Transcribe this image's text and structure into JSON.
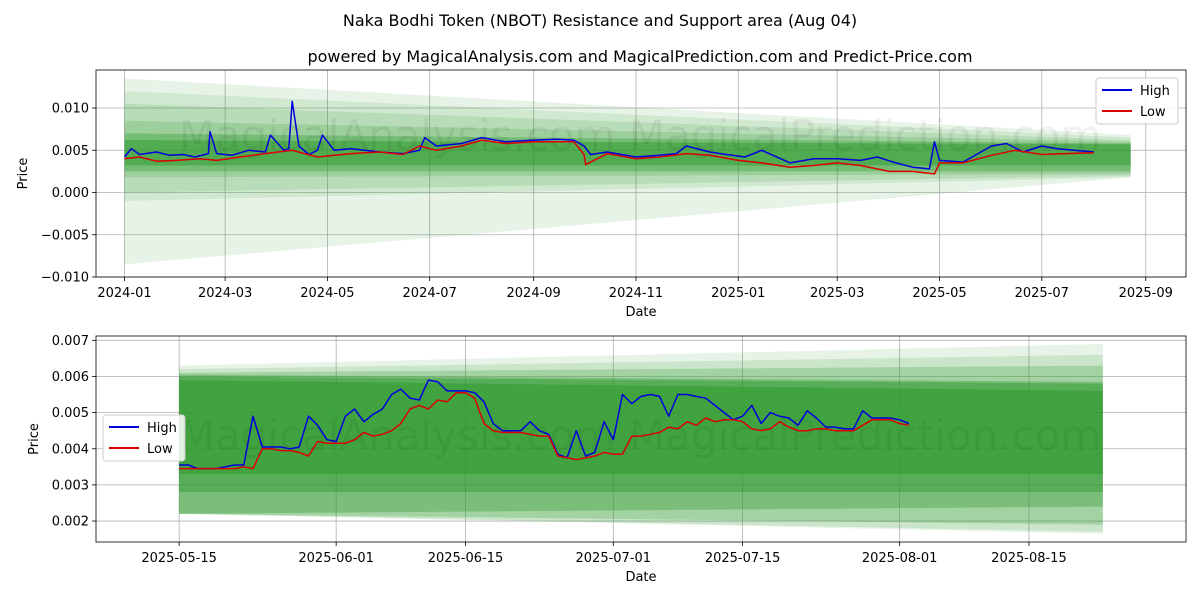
{
  "title": "Naka Bodhi Token (NBOT) Resistance and Support area (Aug 04)",
  "subtitle": "powered by MagicalAnalysis.com and MagicalPrediction.com and Predict-Price.com",
  "watermark": "MagicalAnalysis.com    MagicalPrediction.com",
  "colors": {
    "high": "#0000dd",
    "low": "#dd0000",
    "band": "#2e9a2e",
    "grid": "#b0b0b0"
  },
  "chart_data": [
    {
      "type": "line",
      "xlabel": "Date",
      "ylabel": "Price",
      "xlim": [
        "2023-12-15",
        "2025-09-25"
      ],
      "ylim": [
        -0.01,
        0.0145
      ],
      "xticks": [
        "2024-01",
        "2024-03",
        "2024-05",
        "2024-07",
        "2024-09",
        "2024-11",
        "2025-01",
        "2025-03",
        "2025-05",
        "2025-07",
        "2025-09"
      ],
      "yticks": [
        -0.01,
        -0.005,
        0.0,
        0.005,
        0.01
      ],
      "ytick_labels": [
        "−0.010",
        "−0.005",
        "0.000",
        "0.005",
        "0.010"
      ],
      "legend": {
        "position": "top-right",
        "entries": [
          "High",
          "Low"
        ]
      },
      "grid": true,
      "bands": [
        {
          "x": [
            "2024-01-01",
            "2025-08-23"
          ],
          "upper": [
            0.0135,
            0.0068
          ],
          "lower": [
            -0.0085,
            0.0018
          ],
          "opacity": 0.12
        },
        {
          "x": [
            "2024-01-01",
            "2025-08-23"
          ],
          "upper": [
            0.012,
            0.0065
          ],
          "lower": [
            -0.001,
            0.0018
          ],
          "opacity": 0.12
        },
        {
          "x": [
            "2024-01-01",
            "2025-08-23"
          ],
          "upper": [
            0.0105,
            0.0062
          ],
          "lower": [
            0.0,
            0.002
          ],
          "opacity": 0.15
        },
        {
          "x": [
            "2024-01-01",
            "2025-08-23"
          ],
          "upper": [
            0.0085,
            0.006
          ],
          "lower": [
            0.0018,
            0.0022
          ],
          "opacity": 0.2
        },
        {
          "x": [
            "2024-01-01",
            "2025-08-23"
          ],
          "upper": [
            0.007,
            0.0058
          ],
          "lower": [
            0.0025,
            0.0025
          ],
          "opacity": 0.35
        },
        {
          "x": [
            "2024-01-01",
            "2025-08-23"
          ],
          "upper": [
            0.0062,
            0.0057
          ],
          "lower": [
            0.0032,
            0.0032
          ],
          "opacity": 0.5
        }
      ],
      "series": [
        {
          "name": "High",
          "color": "#0000dd",
          "x": [
            "2024-01-01",
            "2024-01-05",
            "2024-01-10",
            "2024-01-20",
            "2024-01-28",
            "2024-02-05",
            "2024-02-12",
            "2024-02-20",
            "2024-02-21",
            "2024-02-25",
            "2024-03-05",
            "2024-03-15",
            "2024-03-25",
            "2024-03-28",
            "2024-04-05",
            "2024-04-08",
            "2024-04-10",
            "2024-04-14",
            "2024-04-20",
            "2024-04-25",
            "2024-04-28",
            "2024-05-05",
            "2024-05-15",
            "2024-06-01",
            "2024-06-15",
            "2024-06-25",
            "2024-06-28",
            "2024-07-05",
            "2024-07-20",
            "2024-08-01",
            "2024-08-15",
            "2024-09-01",
            "2024-09-15",
            "2024-09-25",
            "2024-10-01",
            "2024-10-05",
            "2024-10-15",
            "2024-11-01",
            "2024-11-15",
            "2024-11-25",
            "2024-12-01",
            "2024-12-15",
            "2024-12-25",
            "2025-01-05",
            "2025-01-15",
            "2025-02-01",
            "2025-02-15",
            "2025-03-01",
            "2025-03-15",
            "2025-03-25",
            "2025-04-05",
            "2025-04-15",
            "2025-04-25",
            "2025-04-28",
            "2025-05-01",
            "2025-05-15",
            "2025-06-01",
            "2025-06-10",
            "2025-06-20",
            "2025-07-01",
            "2025-07-10",
            "2025-07-20",
            "2025-08-01"
          ],
          "y": [
            0.0042,
            0.0052,
            0.0045,
            0.0048,
            0.0044,
            0.0045,
            0.0042,
            0.0046,
            0.0072,
            0.0046,
            0.0044,
            0.005,
            0.0048,
            0.0068,
            0.005,
            0.0052,
            0.0108,
            0.0055,
            0.0045,
            0.005,
            0.0068,
            0.005,
            0.0052,
            0.0048,
            0.0046,
            0.005,
            0.0065,
            0.0055,
            0.0058,
            0.0065,
            0.006,
            0.0062,
            0.0063,
            0.0062,
            0.0055,
            0.0045,
            0.0048,
            0.0042,
            0.0044,
            0.0046,
            0.0055,
            0.0048,
            0.0045,
            0.0042,
            0.005,
            0.0035,
            0.004,
            0.004,
            0.0038,
            0.0042,
            0.0035,
            0.003,
            0.0028,
            0.006,
            0.0038,
            0.0036,
            0.0055,
            0.0058,
            0.0048,
            0.0055,
            0.0052,
            0.005,
            0.0048
          ]
        },
        {
          "name": "Low",
          "color": "#dd0000",
          "x": [
            "2024-01-01",
            "2024-01-10",
            "2024-01-20",
            "2024-02-01",
            "2024-02-15",
            "2024-02-25",
            "2024-03-10",
            "2024-03-25",
            "2024-04-10",
            "2024-04-25",
            "2024-05-15",
            "2024-06-01",
            "2024-06-15",
            "2024-06-25",
            "2024-07-05",
            "2024-07-20",
            "2024-08-01",
            "2024-08-15",
            "2024-09-01",
            "2024-09-25",
            "2024-10-01",
            "2024-10-02",
            "2024-10-15",
            "2024-11-01",
            "2024-11-15",
            "2024-12-01",
            "2024-12-15",
            "2025-01-01",
            "2025-01-15",
            "2025-02-01",
            "2025-02-15",
            "2025-03-01",
            "2025-03-15",
            "2025-04-01",
            "2025-04-15",
            "2025-04-28",
            "2025-05-01",
            "2025-05-15",
            "2025-06-01",
            "2025-06-15",
            "2025-07-01",
            "2025-07-15",
            "2025-08-01"
          ],
          "y": [
            0.004,
            0.0042,
            0.0037,
            0.0038,
            0.004,
            0.0038,
            0.0042,
            0.0046,
            0.005,
            0.0042,
            0.0046,
            0.0048,
            0.0045,
            0.0055,
            0.005,
            0.0055,
            0.0062,
            0.0058,
            0.006,
            0.006,
            0.0045,
            0.0033,
            0.0046,
            0.004,
            0.0042,
            0.0046,
            0.0044,
            0.0038,
            0.0035,
            0.003,
            0.0032,
            0.0035,
            0.0032,
            0.0025,
            0.0025,
            0.0022,
            0.0035,
            0.0035,
            0.0044,
            0.005,
            0.0045,
            0.0046,
            0.0047
          ]
        }
      ]
    },
    {
      "type": "line",
      "xlabel": "Date",
      "ylabel": "Price",
      "xlim": [
        "2025-05-06",
        "2025-09-01"
      ],
      "ylim": [
        0.00142,
        0.00712
      ],
      "xticks": [
        "2025-05-15",
        "2025-06-01",
        "2025-06-15",
        "2025-07-01",
        "2025-07-15",
        "2025-08-01",
        "2025-08-15"
      ],
      "yticks": [
        0.002,
        0.003,
        0.004,
        0.005,
        0.006,
        0.007
      ],
      "ytick_labels": [
        "0.002",
        "0.003",
        "0.004",
        "0.005",
        "0.006",
        "0.007"
      ],
      "legend": {
        "position": "center-left",
        "entries": [
          "High",
          "Low"
        ]
      },
      "grid": true,
      "bands": [
        {
          "x": [
            "2025-05-15",
            "2025-08-23"
          ],
          "upper": [
            0.0063,
            0.0069
          ],
          "lower": [
            0.0022,
            0.00165
          ],
          "opacity": 0.12
        },
        {
          "x": [
            "2025-05-15",
            "2025-08-23"
          ],
          "upper": [
            0.0062,
            0.0066
          ],
          "lower": [
            0.0022,
            0.0017
          ],
          "opacity": 0.15
        },
        {
          "x": [
            "2025-05-15",
            "2025-08-23"
          ],
          "upper": [
            0.0061,
            0.0063
          ],
          "lower": [
            0.0022,
            0.0019
          ],
          "opacity": 0.25
        },
        {
          "x": [
            "2025-05-15",
            "2025-08-23"
          ],
          "upper": [
            0.00605,
            0.00585
          ],
          "lower": [
            0.0022,
            0.0024
          ],
          "opacity": 0.35
        },
        {
          "x": [
            "2025-05-15",
            "2025-08-23"
          ],
          "upper": [
            0.006,
            0.0058
          ],
          "lower": [
            0.0028,
            0.0028
          ],
          "opacity": 0.45
        },
        {
          "x": [
            "2025-05-15",
            "2025-08-23"
          ],
          "upper": [
            0.0059,
            0.0056
          ],
          "lower": [
            0.0033,
            0.0033
          ],
          "opacity": 0.55
        }
      ],
      "series": [
        {
          "name": "High",
          "color": "#0000dd",
          "x": [
            "2025-05-15",
            "2025-05-16",
            "2025-05-17",
            "2025-05-18",
            "2025-05-19",
            "2025-05-20",
            "2025-05-21",
            "2025-05-22",
            "2025-05-23",
            "2025-05-24",
            "2025-05-25",
            "2025-05-26",
            "2025-05-27",
            "2025-05-28",
            "2025-05-29",
            "2025-05-30",
            "2025-05-31",
            "2025-06-01",
            "2025-06-02",
            "2025-06-03",
            "2025-06-04",
            "2025-06-05",
            "2025-06-06",
            "2025-06-07",
            "2025-06-08",
            "2025-06-09",
            "2025-06-10",
            "2025-06-11",
            "2025-06-12",
            "2025-06-13",
            "2025-06-14",
            "2025-06-15",
            "2025-06-16",
            "2025-06-17",
            "2025-06-18",
            "2025-06-19",
            "2025-06-20",
            "2025-06-21",
            "2025-06-22",
            "2025-06-23",
            "2025-06-24",
            "2025-06-25",
            "2025-06-26",
            "2025-06-27",
            "2025-06-28",
            "2025-06-29",
            "2025-06-30",
            "2025-07-01",
            "2025-07-02",
            "2025-07-03",
            "2025-07-04",
            "2025-07-05",
            "2025-07-06",
            "2025-07-07",
            "2025-07-08",
            "2025-07-09",
            "2025-07-10",
            "2025-07-11",
            "2025-07-12",
            "2025-07-13",
            "2025-07-14",
            "2025-07-15",
            "2025-07-16",
            "2025-07-17",
            "2025-07-18",
            "2025-07-19",
            "2025-07-20",
            "2025-07-21",
            "2025-07-22",
            "2025-07-23",
            "2025-07-24",
            "2025-07-25",
            "2025-07-26",
            "2025-07-27",
            "2025-07-28",
            "2025-07-29",
            "2025-07-30",
            "2025-07-31",
            "2025-08-01",
            "2025-08-02"
          ],
          "y": [
            0.00355,
            0.00355,
            0.00345,
            0.00345,
            0.00345,
            0.0035,
            0.00355,
            0.00355,
            0.0049,
            0.00405,
            0.00405,
            0.00405,
            0.004,
            0.00405,
            0.0049,
            0.00465,
            0.00425,
            0.0042,
            0.0049,
            0.0051,
            0.00475,
            0.00495,
            0.0051,
            0.0055,
            0.00565,
            0.0054,
            0.00535,
            0.0059,
            0.00585,
            0.0056,
            0.0056,
            0.0056,
            0.00555,
            0.0053,
            0.0047,
            0.0045,
            0.0045,
            0.0045,
            0.00475,
            0.0045,
            0.0044,
            0.00385,
            0.00375,
            0.0045,
            0.0038,
            0.0039,
            0.00475,
            0.00425,
            0.0055,
            0.00525,
            0.00545,
            0.0055,
            0.00545,
            0.0049,
            0.0055,
            0.0055,
            0.00545,
            0.0054,
            0.0052,
            0.005,
            0.0048,
            0.0049,
            0.0052,
            0.0047,
            0.005,
            0.0049,
            0.00485,
            0.00465,
            0.00505,
            0.00485,
            0.0046,
            0.0046,
            0.00455,
            0.00455,
            0.00505,
            0.00485,
            0.00485,
            0.00485,
            0.0048,
            0.0047
          ]
        },
        {
          "name": "Low",
          "color": "#dd0000",
          "x": [
            "2025-05-15",
            "2025-05-16",
            "2025-05-17",
            "2025-05-18",
            "2025-05-19",
            "2025-05-20",
            "2025-05-21",
            "2025-05-22",
            "2025-05-23",
            "2025-05-24",
            "2025-05-25",
            "2025-05-26",
            "2025-05-27",
            "2025-05-28",
            "2025-05-29",
            "2025-05-30",
            "2025-05-31",
            "2025-06-01",
            "2025-06-02",
            "2025-06-03",
            "2025-06-04",
            "2025-06-05",
            "2025-06-06",
            "2025-06-07",
            "2025-06-08",
            "2025-06-09",
            "2025-06-10",
            "2025-06-11",
            "2025-06-12",
            "2025-06-13",
            "2025-06-14",
            "2025-06-15",
            "2025-06-16",
            "2025-06-17",
            "2025-06-18",
            "2025-06-19",
            "2025-06-20",
            "2025-06-21",
            "2025-06-22",
            "2025-06-23",
            "2025-06-24",
            "2025-06-25",
            "2025-06-26",
            "2025-06-27",
            "2025-06-28",
            "2025-06-29",
            "2025-06-30",
            "2025-07-01",
            "2025-07-02",
            "2025-07-03",
            "2025-07-04",
            "2025-07-05",
            "2025-07-06",
            "2025-07-07",
            "2025-07-08",
            "2025-07-09",
            "2025-07-10",
            "2025-07-11",
            "2025-07-12",
            "2025-07-13",
            "2025-07-14",
            "2025-07-15",
            "2025-07-16",
            "2025-07-17",
            "2025-07-18",
            "2025-07-19",
            "2025-07-20",
            "2025-07-21",
            "2025-07-22",
            "2025-07-23",
            "2025-07-24",
            "2025-07-25",
            "2025-07-26",
            "2025-07-27",
            "2025-07-28",
            "2025-07-29",
            "2025-07-30",
            "2025-07-31",
            "2025-08-01",
            "2025-08-02"
          ],
          "y": [
            0.00345,
            0.00345,
            0.00345,
            0.00345,
            0.00345,
            0.00345,
            0.00345,
            0.0035,
            0.00345,
            0.004,
            0.004,
            0.00395,
            0.00395,
            0.0039,
            0.0038,
            0.0042,
            0.00415,
            0.00415,
            0.00415,
            0.00425,
            0.00445,
            0.00435,
            0.0044,
            0.0045,
            0.0047,
            0.0051,
            0.0052,
            0.0051,
            0.00535,
            0.0053,
            0.00555,
            0.00555,
            0.0054,
            0.0047,
            0.0045,
            0.00445,
            0.00445,
            0.00445,
            0.0044,
            0.00435,
            0.00435,
            0.0038,
            0.00375,
            0.0037,
            0.00375,
            0.0038,
            0.0039,
            0.00385,
            0.00385,
            0.00435,
            0.00435,
            0.0044,
            0.00445,
            0.0046,
            0.00455,
            0.00475,
            0.00465,
            0.00485,
            0.00475,
            0.0048,
            0.0048,
            0.00475,
            0.00455,
            0.0045,
            0.00455,
            0.00475,
            0.0046,
            0.0045,
            0.0045,
            0.00455,
            0.00455,
            0.0045,
            0.0045,
            0.0045,
            0.00465,
            0.0048,
            0.0048,
            0.0048,
            0.0047,
            0.00465
          ]
        }
      ]
    }
  ]
}
